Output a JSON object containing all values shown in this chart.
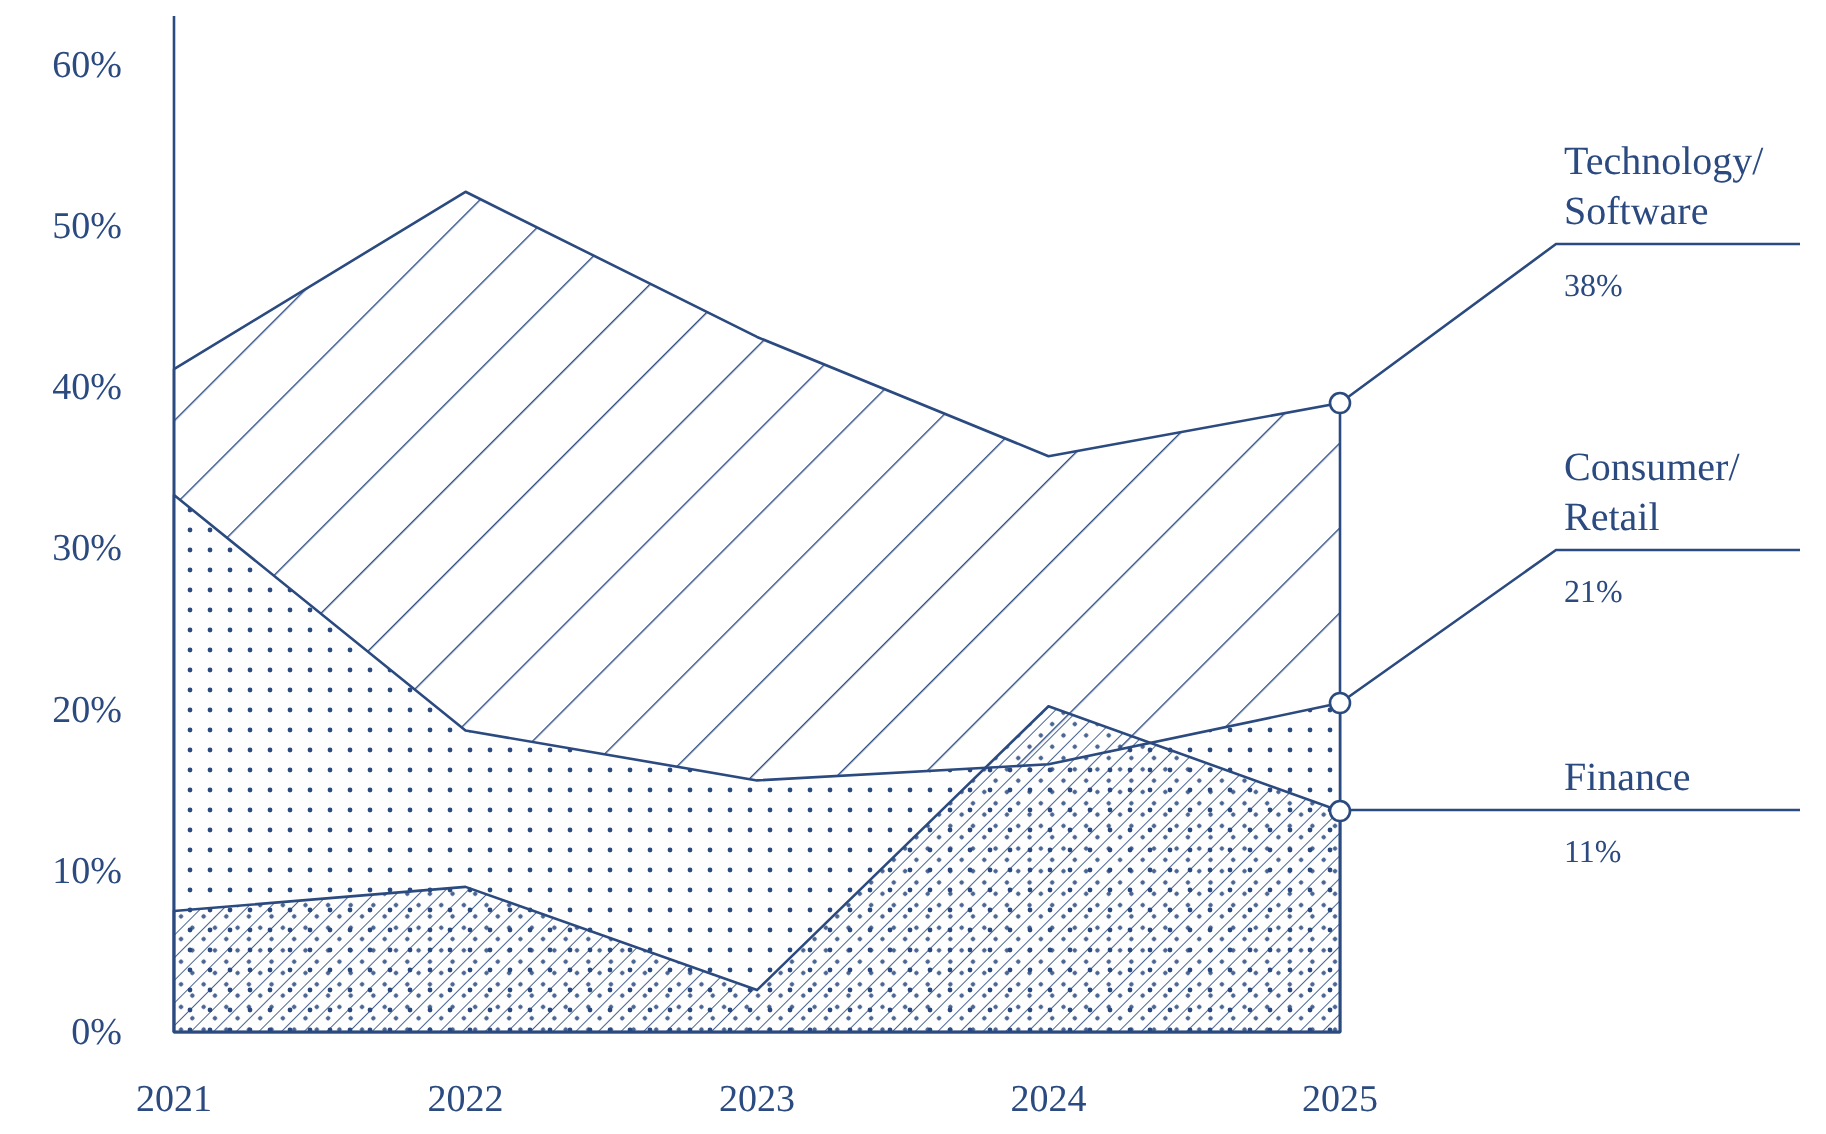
{
  "chart_data": {
    "type": "area",
    "categories": [
      "2021",
      "2022",
      "2023",
      "2024",
      "2025"
    ],
    "series": [
      {
        "name": "Technology/Software",
        "color": "#2b4a80",
        "values": [
          41.1,
          52.1,
          43.1,
          35.7,
          39.0
        ]
      },
      {
        "name": "Consumer/Retail",
        "color": "#2b4a80",
        "values": [
          33.3,
          18.7,
          15.6,
          16.6,
          20.4
        ]
      },
      {
        "name": "Finance",
        "color": "#2b4a80",
        "values": [
          7.5,
          9.0,
          2.6,
          20.2,
          13.7
        ]
      }
    ],
    "annotations": [
      "38%",
      "21%",
      "11%"
    ],
    "ylim": [
      0,
      63
    ],
    "yticks": [
      {
        "value": 0,
        "label": "0%"
      },
      {
        "value": 10,
        "label": "10%"
      },
      {
        "value": 20,
        "label": "20%"
      },
      {
        "value": 30,
        "label": "30%"
      },
      {
        "value": 40,
        "label": "40%"
      },
      {
        "value": 50,
        "label": "50%"
      },
      {
        "value": 60,
        "label": "60%"
      }
    ],
    "grid": false
  }
}
